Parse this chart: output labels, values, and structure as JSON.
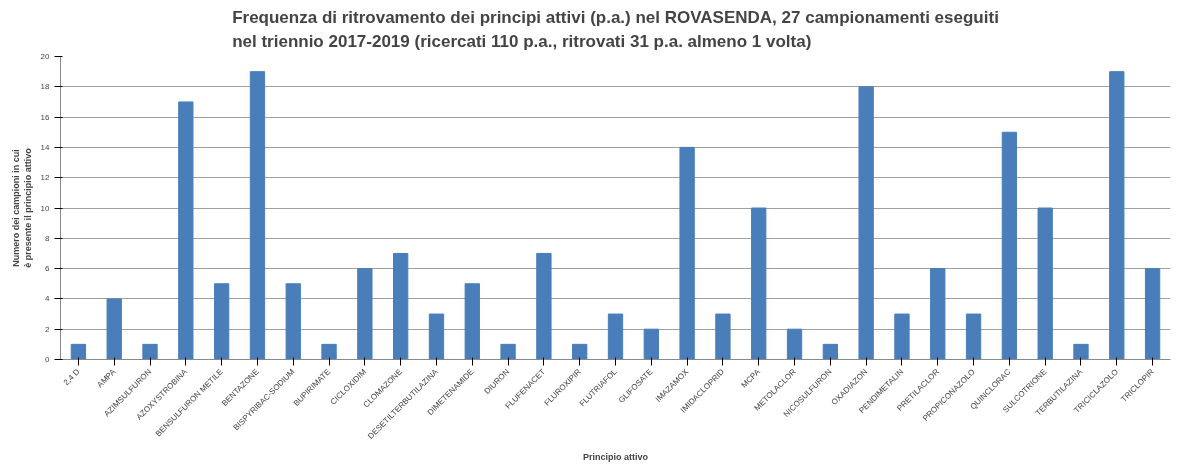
{
  "chart_data": {
    "type": "bar",
    "title": "Frequenza di ritrovamento dei principi attivi (p.a.) nel ROVASENDA, 27 campionamenti eseguiti\nnel triennio 2017-2019 (ricercati 110 p.a., ritrovati 31 p.a. almeno 1 volta)",
    "xlabel": "Principio attivo",
    "ylabel": "Numero dei campioni in cui\nè presente il principio attivo",
    "categories": [
      "2,4 D",
      "AMPA",
      "AZIMSULFURON",
      "AZOXYSTROBINA",
      "BENSULFURON METILE",
      "BENTAZONE",
      "BISPYRIBAC-SODIUM",
      "BUPIRIMATE",
      "CICLOXIDIM",
      "CLOMAZONE",
      "DESETILTERBUTILAZINA",
      "DIMETENAMIDE",
      "DIURON",
      "FLUFENACET",
      "FLUROXIPIR",
      "FLUTRIAFOL",
      "GLIFOSATE",
      "IMAZAMOX",
      "IMIDACLOPRID",
      "MCPA",
      "METOLACLOR",
      "NICOSULFURON",
      "OXADIAZON",
      "PENDIMETALIN",
      "PRETILACLOR",
      "PROPICONAZOLO",
      "QUINCLORAC",
      "SULCOTRIONE",
      "TERBUTILAZINA",
      "TRICICLAZOLO",
      "TRICLOPIR"
    ],
    "values": [
      1,
      4,
      1,
      17,
      5,
      19,
      5,
      1,
      6,
      7,
      3,
      5,
      1,
      7,
      1,
      3,
      2,
      14,
      3,
      10,
      2,
      1,
      18,
      3,
      6,
      3,
      15,
      10,
      1,
      19,
      6
    ],
    "color": "#4a7ebb",
    "ylim": [
      0,
      20
    ],
    "yticks": [
      0,
      2,
      4,
      6,
      8,
      10,
      12,
      14,
      16,
      18,
      20
    ],
    "grid": "y"
  }
}
